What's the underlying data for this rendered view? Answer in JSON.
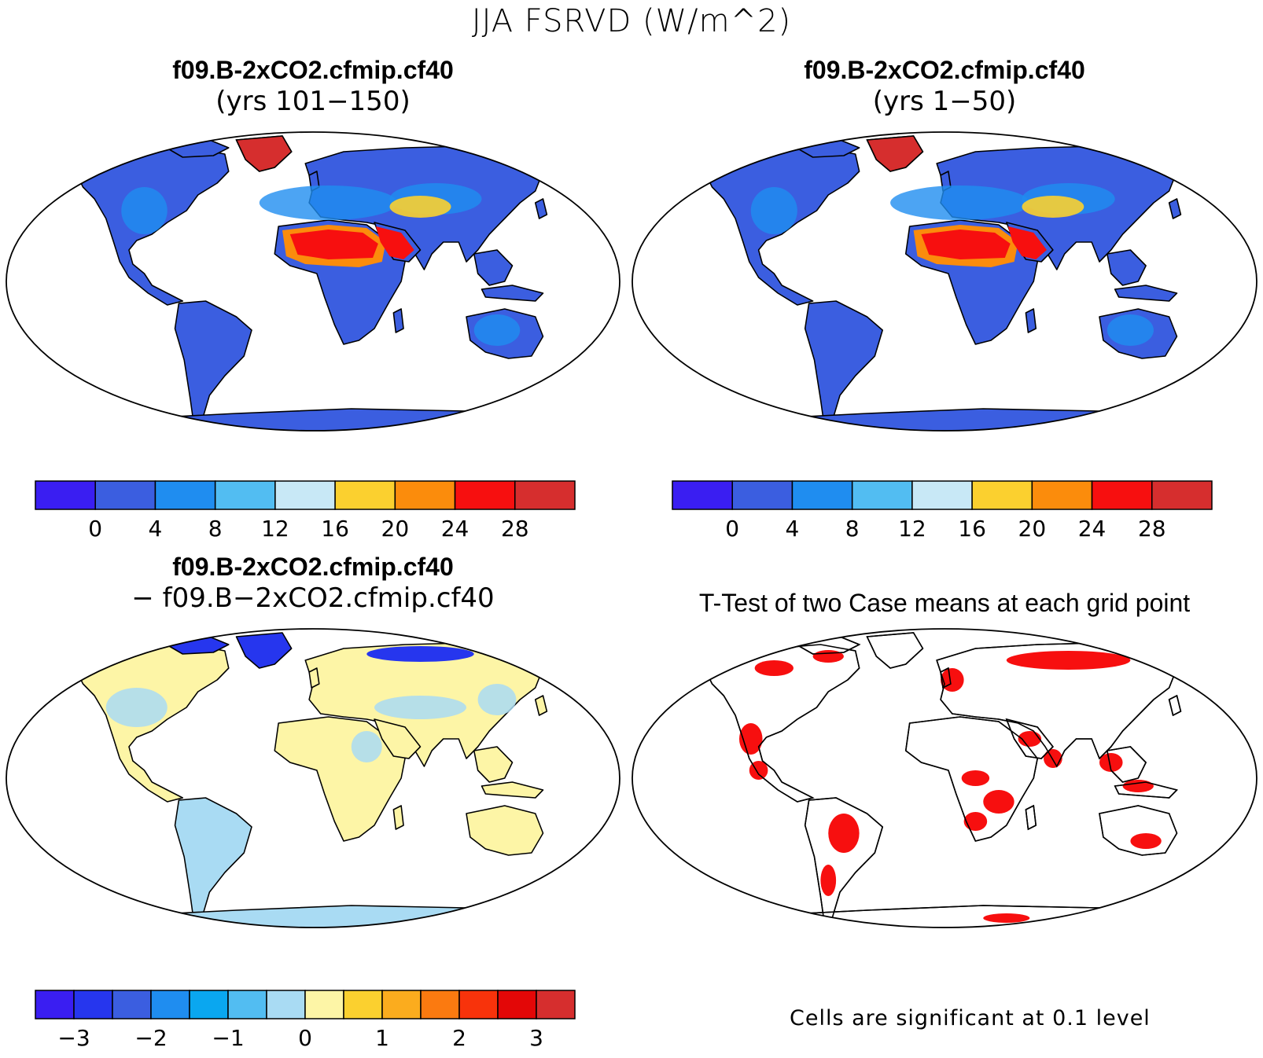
{
  "title": "JJA FSRVD (W/m^2)",
  "panels": {
    "top_left": {
      "line1": "f09.B-2xCO2.cfmip.cf40",
      "line2": "(yrs 101−150)"
    },
    "top_right": {
      "line1": "f09.B-2xCO2.cfmip.cf40",
      "line2": "(yrs 1−50)"
    },
    "bottom_left": {
      "line1": "f09.B-2xCO2.cfmip.cf40",
      "line2": "− f09.B−2xCO2.cfmip.cf40"
    },
    "bottom_right": {
      "line1": "T-Test of two Case means at each grid point"
    }
  },
  "colorbars": {
    "abs": {
      "colors": [
        "#3a1ef2",
        "#3b5ee0",
        "#1f8df0",
        "#52bdf2",
        "#c8e8f6",
        "#fbd02f",
        "#fb8c0c",
        "#f70f0f",
        "#d62e2e"
      ],
      "labels": [
        "0",
        "4",
        "8",
        "12",
        "16",
        "20",
        "24",
        "28"
      ]
    },
    "diff": {
      "colors": [
        "#3a1ef2",
        "#2636ee",
        "#3b5ee0",
        "#1f8df0",
        "#0aa7f0",
        "#52bdf2",
        "#a9dbf3",
        "#fdf5a6",
        "#fbd02f",
        "#fbac1e",
        "#fb7a10",
        "#f8330b",
        "#e30707",
        "#d62e2e"
      ],
      "labels": [
        "−3",
        "−2",
        "−1",
        "0",
        "1",
        "2",
        "3"
      ]
    }
  },
  "note": "Cells are significant at 0.1 level",
  "map_colors": {
    "land_base_abs": "#3b5ee0",
    "land_lighter_abs": "#1f8df0",
    "desert_abs": "#f70f0f",
    "desert_edge_abs": "#fb8c0c",
    "ice_abs": "#d62e2e",
    "land_base_diff": "#fdf5a6",
    "land_alt_diff": "#a9dbf3",
    "arctic_diff": "#2636ee",
    "significant": "#f70f0f"
  }
}
